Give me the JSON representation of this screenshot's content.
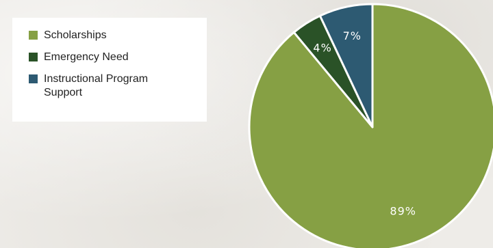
{
  "chart_data": {
    "type": "pie",
    "title": "",
    "slices": [
      {
        "label": "Scholarships",
        "value": 89,
        "display": "89%",
        "color": "#86a044"
      },
      {
        "label": "Emergency Need",
        "value": 4,
        "display": "4%",
        "color": "#2a5227"
      },
      {
        "label": "Instructional Program Support",
        "value": 7,
        "display": "7%",
        "color": "#2d5a72"
      }
    ],
    "legend_position": "left",
    "start": "top",
    "direction": "clockwise"
  }
}
